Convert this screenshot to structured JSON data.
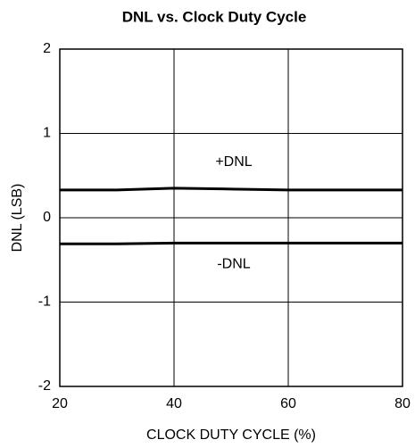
{
  "chart_data": {
    "type": "line",
    "title": "DNL vs. Clock Duty Cycle",
    "x_label": "CLOCK DUTY CYCLE (%)",
    "y_label": "DNL (LSB)",
    "x": [
      20,
      30,
      40,
      50,
      60,
      70,
      80
    ],
    "series": [
      {
        "name": "+DNL",
        "color": "#000000",
        "values": [
          0.33,
          0.33,
          0.35,
          0.34,
          0.33,
          0.33,
          0.33
        ]
      },
      {
        "name": "-DNL",
        "color": "#000000",
        "values": [
          -0.31,
          -0.31,
          -0.3,
          -0.3,
          -0.3,
          -0.3,
          -0.3
        ]
      }
    ],
    "xlim": [
      20,
      80
    ],
    "xticks": [
      20,
      40,
      60,
      80
    ],
    "ylim": [
      -2,
      2
    ],
    "yticks": [
      -2,
      -1,
      0,
      1,
      2
    ],
    "grid": true
  }
}
